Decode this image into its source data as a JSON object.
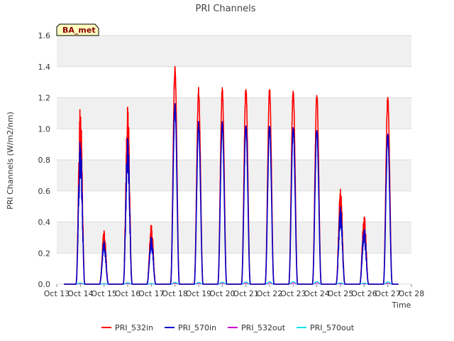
{
  "chart_data": {
    "type": "line",
    "title": "PRI Channels",
    "xlabel": "Time",
    "ylabel": "PRI Channels (W/m2/nm)",
    "badge": "BA_met",
    "xlim": [
      13,
      28
    ],
    "ylim": [
      0,
      1.6
    ],
    "xticks": [
      13,
      14,
      15,
      16,
      17,
      18,
      19,
      20,
      21,
      22,
      23,
      24,
      25,
      26,
      27,
      28
    ],
    "xtick_labels": [
      "Oct 13",
      "Oct 14",
      "Oct 15",
      "Oct 16",
      "Oct 17",
      "Oct 18",
      "Oct 19",
      "Oct 20",
      "Oct 21",
      "Oct 22",
      "Oct 23",
      "Oct 24",
      "Oct 25",
      "Oct 26",
      "Oct 27",
      "Oct 28"
    ],
    "yticks": [
      0.0,
      0.2,
      0.4,
      0.6,
      0.8,
      1.0,
      1.2,
      1.4,
      1.6
    ],
    "ytick_labels": [
      "0.0",
      "0.2",
      "0.4",
      "0.6",
      "0.8",
      "1.0",
      "1.2",
      "1.4",
      "1.6"
    ],
    "data_start": 13.3,
    "data_end": 27.45,
    "days": [
      14,
      15,
      16,
      17,
      18,
      19,
      20,
      21,
      22,
      23,
      24,
      25,
      26,
      27
    ],
    "series": [
      {
        "name": "PRI_532in",
        "color": "#ff0000",
        "width": 1.6,
        "peaks": [
          1.17,
          0.35,
          1.19,
          0.39,
          1.41,
          1.27,
          1.27,
          1.28,
          1.27,
          1.27,
          1.24,
          0.63,
          0.47,
          1.22
        ]
      },
      {
        "name": "PRI_570in",
        "color": "#0000cc",
        "width": 1.6,
        "peaks": [
          0.95,
          0.28,
          0.98,
          0.31,
          1.17,
          1.05,
          1.05,
          1.04,
          1.03,
          1.03,
          1.01,
          0.51,
          0.38,
          0.98
        ]
      },
      {
        "name": "PRI_532out",
        "color": "#cc00cc",
        "width": 1.2,
        "peaks": [
          0.004,
          0.002,
          0.005,
          0.002,
          0.006,
          0.006,
          0.007,
          0.007,
          0.008,
          0.008,
          0.008,
          0.004,
          0.003,
          0.007
        ]
      },
      {
        "name": "PRI_570out",
        "color": "#00e5ee",
        "width": 1.2,
        "peaks": [
          0.008,
          0.004,
          0.01,
          0.004,
          0.012,
          0.012,
          0.013,
          0.014,
          0.016,
          0.017,
          0.017,
          0.009,
          0.007,
          0.015
        ]
      }
    ]
  }
}
